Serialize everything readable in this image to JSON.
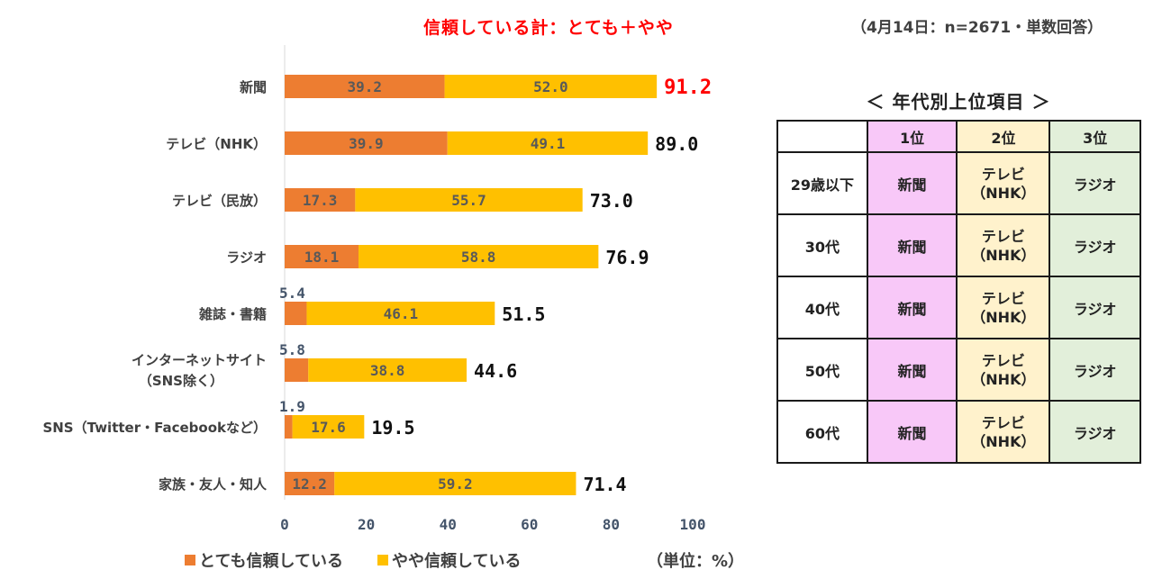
{
  "header": {
    "title": "信頼している計：とても＋やや",
    "note": "（4月14日：n=2671・単数回答）"
  },
  "colors": {
    "series1": "#ed7d31",
    "series2": "#ffc000",
    "total_highlight": "#ff0000",
    "axis_text": "#44546a",
    "inner_label": "#595959"
  },
  "chart_data": {
    "type": "bar",
    "orientation": "horizontal",
    "stacked": true,
    "categories": [
      "新聞",
      "テレビ（NHK）",
      "テレビ（民放）",
      "ラジオ",
      "雑誌・書籍",
      "インターネットサイト（SNS除く）",
      "SNS（Twitter・Facebookなど）",
      "家族・友人・知人"
    ],
    "category_lines": [
      [
        "新聞"
      ],
      [
        "テレビ（NHK）"
      ],
      [
        "テレビ（民放）"
      ],
      [
        "ラジオ"
      ],
      [
        "雑誌・書籍"
      ],
      [
        "インターネットサイト",
        "（SNS除く）"
      ],
      [
        "SNS（Twitter・Facebookなど）"
      ],
      [
        "家族・友人・知人"
      ]
    ],
    "series": [
      {
        "name": "とても信頼している",
        "values": [
          39.2,
          39.9,
          17.3,
          18.1,
          5.4,
          5.8,
          1.9,
          12.2
        ]
      },
      {
        "name": "やや信頼している",
        "values": [
          52.0,
          49.1,
          55.7,
          58.8,
          46.1,
          38.8,
          17.6,
          59.2
        ]
      }
    ],
    "totals": [
      91.2,
      89.0,
      73.0,
      76.9,
      51.5,
      44.6,
      19.5,
      71.4
    ],
    "xlim": [
      0,
      100
    ],
    "xticks": [
      0,
      20,
      40,
      60,
      80,
      100
    ],
    "legend_position": "bottom",
    "unit_note": "（単位：%）",
    "grid": false
  },
  "ranking_table": {
    "title": "＜ 年代別上位項目 ＞",
    "headers": [
      "",
      "1位",
      "2位",
      "3位"
    ],
    "rows": [
      {
        "age": "29歳以下",
        "first": "新聞",
        "second_lines": [
          "テレビ",
          "（NHK）"
        ],
        "third": "ラジオ"
      },
      {
        "age": "30代",
        "first": "新聞",
        "second_lines": [
          "テレビ",
          "（NHK）"
        ],
        "third": "ラジオ"
      },
      {
        "age": "40代",
        "first": "新聞",
        "second_lines": [
          "テレビ",
          "（NHK）"
        ],
        "third": "ラジオ"
      },
      {
        "age": "50代",
        "first": "新聞",
        "second_lines": [
          "テレビ",
          "（NHK）"
        ],
        "third": "ラジオ"
      },
      {
        "age": "60代",
        "first": "新聞",
        "second_lines": [
          "テレビ",
          "（NHK）"
        ],
        "third": "ラジオ"
      }
    ]
  }
}
